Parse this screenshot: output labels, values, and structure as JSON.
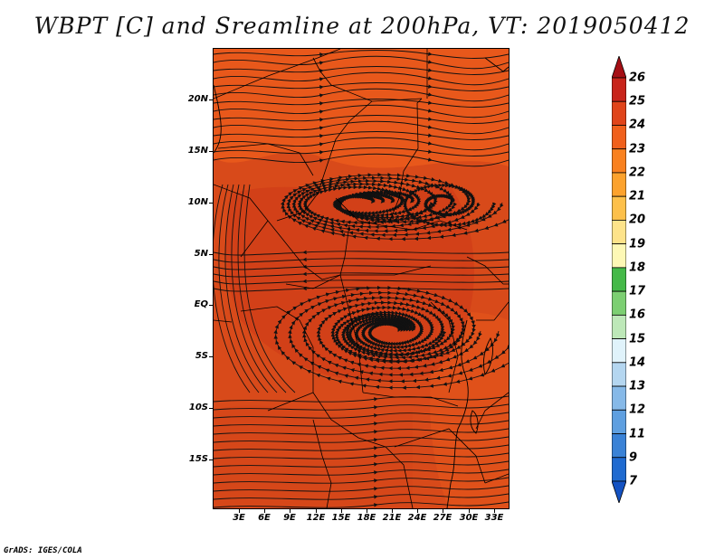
{
  "title": "WBPT [C] and Sreamline at 200hPa, VT: 2019050412",
  "credit": "GrADS: IGES/COLA",
  "map": {
    "field_color": "#d84a1a",
    "streamline_color": "#111111",
    "lat_labels": [
      "20N",
      "15N",
      "10N",
      "5N",
      "EQ",
      "5S",
      "10S",
      "15S"
    ],
    "lon_labels": [
      "3E",
      "6E",
      "9E",
      "12E",
      "15E",
      "18E",
      "21E",
      "24E",
      "27E",
      "30E",
      "33E"
    ]
  },
  "colorbar": {
    "labels": [
      "26",
      "25",
      "24",
      "23",
      "22",
      "21",
      "20",
      "19",
      "18",
      "17",
      "16",
      "15",
      "14",
      "13",
      "12",
      "11",
      "9",
      "7"
    ],
    "colors": [
      "#a50f15",
      "#c8241a",
      "#e0441a",
      "#f0601c",
      "#f9811f",
      "#fca22d",
      "#fdc04a",
      "#fde38a",
      "#fdf8b5",
      "#44b948",
      "#7ccf72",
      "#bde8b8",
      "#e0f3fb",
      "#b4d6f0",
      "#86b9e8",
      "#5e9fe0",
      "#3a82d6",
      "#1f6ad0",
      "#1452c2"
    ]
  }
}
